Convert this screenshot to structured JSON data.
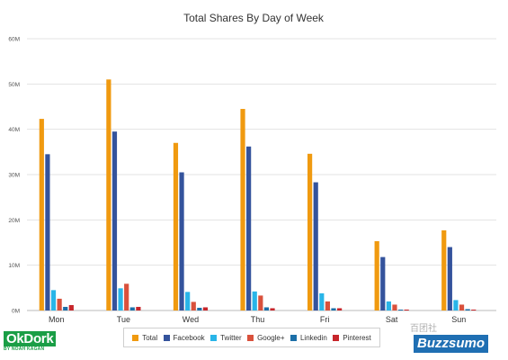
{
  "colors": {
    "total": "#F09A10",
    "facebook": "#34539C",
    "twitter": "#29B5E8",
    "googleplus": "#D9513C",
    "linkedin": "#1C6FA8",
    "pinterest": "#C7262B",
    "grid": "#e3e3e3",
    "axis_text": "#555555",
    "okdork_green": "#1a9e46",
    "buzzsumo_blue": "#1f6fb3"
  },
  "chart_data": {
    "type": "bar",
    "title": "Total Shares By Day of Week",
    "xlabel": "",
    "ylabel": "",
    "ylim": [
      0,
      60
    ],
    "y_unit": "M",
    "yticks": [
      "0M",
      "10M",
      "20M",
      "30M",
      "40M",
      "50M",
      "60M"
    ],
    "grid": true,
    "legend_placement": "bottom-center",
    "categories": [
      "Mon",
      "Tue",
      "Wed",
      "Thu",
      "Fri",
      "Sat",
      "Sun"
    ],
    "series": [
      {
        "name": "Total",
        "color_key": "total",
        "values": [
          42.3,
          51.0,
          37.0,
          44.5,
          34.6,
          15.3,
          17.7
        ]
      },
      {
        "name": "Facebook",
        "color_key": "facebook",
        "values": [
          34.5,
          39.5,
          30.5,
          36.2,
          28.3,
          11.8,
          14.0
        ]
      },
      {
        "name": "Twitter",
        "color_key": "twitter",
        "values": [
          4.5,
          4.9,
          4.1,
          4.2,
          3.8,
          2.0,
          2.3
        ]
      },
      {
        "name": "Google+",
        "color_key": "googleplus",
        "values": [
          2.6,
          5.9,
          1.9,
          3.3,
          2.0,
          1.3,
          1.3
        ]
      },
      {
        "name": "Linkedin",
        "color_key": "linkedin",
        "values": [
          0.8,
          0.7,
          0.6,
          0.7,
          0.5,
          0.2,
          0.3
        ]
      },
      {
        "name": "Pinterest",
        "color_key": "pinterest",
        "values": [
          1.2,
          0.8,
          0.7,
          0.5,
          0.5,
          0.2,
          0.2
        ]
      }
    ]
  },
  "branding": {
    "left_logo_main": "OkDork",
    "left_logo_sub": "BY NOAH KAGAN",
    "right_logo": "Buzzsumo",
    "watermark": "百团社"
  }
}
